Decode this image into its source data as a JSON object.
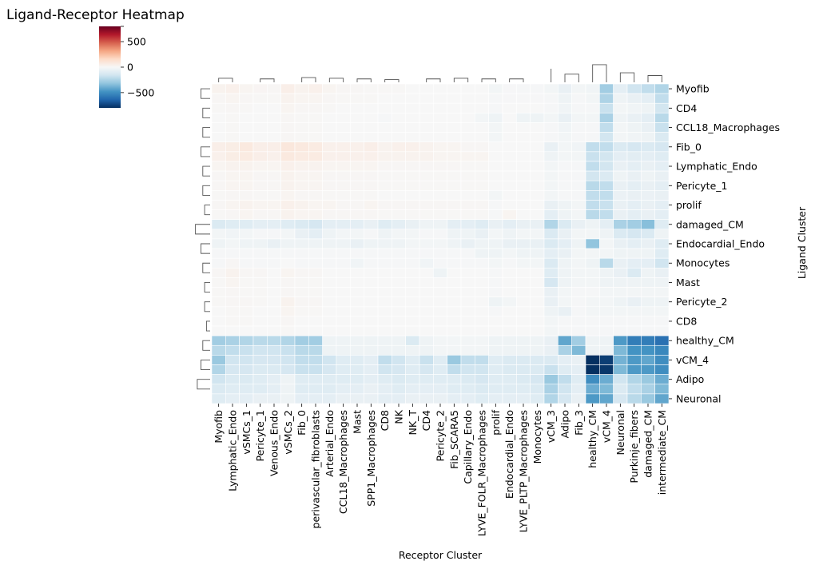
{
  "chart_data": {
    "type": "heatmap",
    "title": "Ligand-Receptor Heatmap",
    "xlabel": "Receptor Cluster",
    "ylabel": "Ligand Cluster",
    "colormap": "RdBu_r",
    "vmin": -800,
    "vmax": 800,
    "colorbar_ticks": [
      800,
      500,
      0,
      -500
    ],
    "colorbar_tick_labels": [
      "",
      "500",
      "0",
      "−500"
    ],
    "columns": [
      "Myofib",
      "Lymphatic_Endo",
      "vSMCs_1",
      "Pericyte_1",
      "Venous_Endo",
      "vSMCs_2",
      "Fib_0",
      "perivascular_fibroblasts",
      "Arterial_Endo",
      "CCL18_Macrophages",
      "Mast",
      "SPP1_Macrophages",
      "CD8",
      "NK",
      "NK_T",
      "CD4",
      "Pericyte_2",
      "Fib_SCARA5",
      "Capillary_Endo",
      "LYVE_FOLR_Macrophages",
      "prolif",
      "Endocardial_Endo",
      "LYVE_PLTP_Macrophages",
      "Monocytes",
      "vCM_3",
      "Adipo",
      "Fib_3",
      "healthy_CM",
      "vCM_4",
      "Neuronal",
      "Purkinje_fibers",
      "damaged_CM",
      "intermediate_CM"
    ],
    "rows": [
      "Myofib",
      "",
      "CD4",
      "",
      "CCL18_Macrophages",
      "",
      "Fib_0",
      "",
      "Lymphatic_Endo",
      "",
      "Pericyte_1",
      "",
      "prolif",
      "",
      "damaged_CM",
      "",
      "Endocardial_Endo",
      "",
      "Monocytes",
      "",
      "Mast",
      "",
      "Pericyte_2",
      "",
      "CD8",
      "",
      "healthy_CM",
      "",
      "vCM_4",
      "",
      "Adipo",
      "",
      "Neuronal"
    ],
    "values": [
      [
        30,
        40,
        20,
        15,
        10,
        50,
        30,
        40,
        20,
        10,
        10,
        5,
        5,
        5,
        0,
        0,
        0,
        0,
        0,
        0,
        -20,
        -5,
        -10,
        -10,
        -20,
        -60,
        -20,
        -30,
        -280,
        -80,
        -160,
        -200,
        -240
      ],
      [
        10,
        20,
        10,
        5,
        5,
        30,
        20,
        20,
        10,
        5,
        5,
        5,
        0,
        0,
        0,
        0,
        0,
        0,
        0,
        0,
        -10,
        -5,
        -5,
        -5,
        -10,
        -40,
        -10,
        -20,
        -250,
        -40,
        -60,
        -80,
        -200
      ],
      [
        5,
        10,
        5,
        0,
        0,
        20,
        10,
        10,
        5,
        0,
        0,
        0,
        0,
        0,
        0,
        0,
        0,
        0,
        0,
        0,
        -10,
        0,
        0,
        0,
        -10,
        -30,
        -10,
        -10,
        -180,
        -20,
        -30,
        -40,
        -150
      ],
      [
        0,
        5,
        0,
        0,
        0,
        10,
        5,
        5,
        0,
        0,
        0,
        0,
        -10,
        0,
        0,
        0,
        0,
        0,
        0,
        -20,
        -40,
        0,
        -40,
        -40,
        -20,
        -60,
        -20,
        -20,
        -260,
        -40,
        -60,
        -80,
        -220
      ],
      [
        0,
        5,
        0,
        0,
        0,
        10,
        5,
        5,
        0,
        0,
        0,
        0,
        0,
        0,
        0,
        0,
        0,
        0,
        0,
        0,
        -20,
        0,
        0,
        0,
        -10,
        -30,
        -10,
        -10,
        -200,
        -20,
        -40,
        -60,
        -180
      ],
      [
        0,
        5,
        0,
        0,
        0,
        10,
        5,
        5,
        0,
        0,
        0,
        0,
        0,
        0,
        0,
        0,
        0,
        0,
        0,
        0,
        -20,
        0,
        0,
        0,
        -10,
        -20,
        -10,
        -10,
        -150,
        -20,
        -30,
        -40,
        -120
      ],
      [
        50,
        60,
        80,
        50,
        50,
        90,
        80,
        70,
        40,
        40,
        40,
        50,
        30,
        40,
        40,
        30,
        20,
        20,
        10,
        10,
        0,
        0,
        0,
        0,
        -60,
        -20,
        -30,
        -200,
        -200,
        -120,
        -140,
        -120,
        -140
      ],
      [
        40,
        60,
        70,
        50,
        40,
        80,
        70,
        70,
        40,
        40,
        40,
        40,
        30,
        30,
        30,
        30,
        20,
        20,
        20,
        20,
        0,
        0,
        0,
        0,
        -40,
        -20,
        -20,
        -180,
        -150,
        -80,
        -90,
        -80,
        -100
      ],
      [
        20,
        30,
        30,
        20,
        20,
        40,
        30,
        30,
        20,
        20,
        20,
        20,
        10,
        10,
        10,
        10,
        10,
        10,
        5,
        5,
        0,
        0,
        0,
        0,
        -20,
        -10,
        -10,
        -200,
        -150,
        -60,
        -80,
        -60,
        -80
      ],
      [
        10,
        20,
        20,
        10,
        10,
        30,
        20,
        20,
        10,
        10,
        10,
        10,
        5,
        5,
        5,
        5,
        5,
        5,
        5,
        5,
        0,
        0,
        0,
        0,
        -20,
        -10,
        -10,
        -150,
        -120,
        -40,
        -60,
        -40,
        -60
      ],
      [
        10,
        20,
        20,
        10,
        10,
        30,
        20,
        20,
        10,
        10,
        10,
        10,
        5,
        5,
        5,
        5,
        5,
        5,
        5,
        5,
        0,
        0,
        0,
        0,
        -20,
        -10,
        -10,
        -220,
        -200,
        -60,
        -80,
        -60,
        -80
      ],
      [
        5,
        10,
        10,
        5,
        5,
        20,
        10,
        10,
        5,
        5,
        5,
        5,
        0,
        0,
        0,
        0,
        0,
        0,
        0,
        0,
        -20,
        0,
        0,
        0,
        -20,
        -10,
        -10,
        -200,
        -200,
        -50,
        -60,
        -50,
        -60
      ],
      [
        10,
        20,
        30,
        20,
        20,
        40,
        30,
        20,
        20,
        10,
        10,
        20,
        10,
        10,
        10,
        10,
        10,
        10,
        10,
        10,
        -10,
        0,
        0,
        0,
        -60,
        -40,
        -20,
        -200,
        -180,
        -60,
        -80,
        -60,
        -80
      ],
      [
        5,
        10,
        20,
        10,
        10,
        30,
        20,
        20,
        10,
        10,
        10,
        10,
        5,
        5,
        5,
        5,
        5,
        5,
        5,
        5,
        -10,
        20,
        0,
        0,
        -80,
        -40,
        -20,
        -220,
        -200,
        -60,
        -80,
        -60,
        -80
      ],
      [
        -120,
        -100,
        -100,
        -80,
        -80,
        -100,
        -120,
        -140,
        -80,
        -80,
        -80,
        -60,
        -100,
        -80,
        -60,
        -40,
        -40,
        -80,
        -80,
        -100,
        -60,
        -80,
        -60,
        -60,
        -240,
        -120,
        -60,
        -40,
        -80,
        -260,
        -280,
        -340,
        -100
      ],
      [
        -20,
        -30,
        -20,
        -10,
        -10,
        -20,
        -60,
        -80,
        -40,
        -20,
        -20,
        -10,
        -40,
        -20,
        -20,
        -10,
        -10,
        -40,
        -40,
        -60,
        -20,
        -40,
        -20,
        -20,
        -120,
        -60,
        -20,
        -20,
        -40,
        -120,
        -140,
        -120,
        -40
      ],
      [
        -40,
        -20,
        -40,
        -40,
        -60,
        -40,
        -40,
        -40,
        -40,
        -40,
        -60,
        -40,
        -40,
        -40,
        -20,
        -20,
        -20,
        -40,
        -60,
        -40,
        -40,
        -60,
        -60,
        -60,
        -120,
        -80,
        -40,
        -320,
        -20,
        -60,
        -80,
        -60,
        -100
      ],
      [
        -10,
        -10,
        -10,
        -10,
        -10,
        -10,
        -10,
        -10,
        -10,
        -10,
        -10,
        -10,
        -10,
        -10,
        -10,
        -10,
        -10,
        -10,
        -10,
        -40,
        -40,
        -20,
        -40,
        -40,
        -80,
        -60,
        -20,
        -20,
        -20,
        -40,
        -40,
        -40,
        -100
      ],
      [
        -10,
        10,
        -10,
        -10,
        -10,
        0,
        -10,
        -10,
        -10,
        -10,
        -30,
        -10,
        -10,
        -10,
        -10,
        -30,
        -10,
        -10,
        -10,
        -10,
        -20,
        -10,
        -20,
        -20,
        -120,
        -40,
        -20,
        -40,
        -220,
        -60,
        -80,
        -80,
        -160
      ],
      [
        10,
        30,
        10,
        10,
        0,
        20,
        10,
        10,
        0,
        0,
        0,
        0,
        0,
        0,
        0,
        0,
        -40,
        0,
        0,
        0,
        -10,
        0,
        0,
        0,
        -100,
        -40,
        -20,
        -20,
        -40,
        -60,
        -120,
        -40,
        -60
      ],
      [
        5,
        20,
        5,
        5,
        0,
        10,
        5,
        5,
        0,
        0,
        0,
        0,
        0,
        0,
        0,
        0,
        0,
        0,
        0,
        0,
        -10,
        0,
        0,
        0,
        -140,
        -40,
        -20,
        -20,
        -40,
        -40,
        -40,
        -40,
        -40
      ],
      [
        5,
        10,
        5,
        5,
        0,
        10,
        5,
        5,
        0,
        0,
        0,
        0,
        0,
        0,
        0,
        0,
        0,
        0,
        0,
        0,
        -10,
        0,
        0,
        0,
        -60,
        -20,
        -10,
        -10,
        -20,
        -20,
        -20,
        -20,
        -20
      ],
      [
        5,
        10,
        10,
        5,
        0,
        30,
        10,
        10,
        0,
        0,
        0,
        0,
        0,
        0,
        0,
        0,
        0,
        0,
        0,
        0,
        -40,
        -20,
        0,
        0,
        -60,
        -20,
        -10,
        -20,
        -20,
        -40,
        -60,
        -40,
        -40
      ],
      [
        0,
        5,
        5,
        0,
        0,
        20,
        5,
        5,
        0,
        0,
        0,
        0,
        0,
        0,
        0,
        0,
        0,
        0,
        0,
        0,
        -10,
        0,
        0,
        0,
        -40,
        -60,
        -10,
        -20,
        -20,
        -20,
        -20,
        -20,
        -20
      ],
      [
        0,
        5,
        5,
        0,
        0,
        10,
        0,
        0,
        0,
        0,
        0,
        0,
        0,
        0,
        0,
        0,
        0,
        0,
        0,
        0,
        0,
        0,
        0,
        0,
        -20,
        -10,
        -10,
        -10,
        -10,
        -10,
        -10,
        -10,
        -10
      ],
      [
        0,
        0,
        0,
        0,
        0,
        5,
        0,
        0,
        0,
        0,
        0,
        0,
        0,
        0,
        0,
        0,
        0,
        0,
        0,
        0,
        0,
        0,
        0,
        0,
        -20,
        -10,
        -10,
        -10,
        -10,
        -10,
        -10,
        -10,
        -10
      ],
      [
        -280,
        -260,
        -240,
        -220,
        -220,
        -240,
        -280,
        -280,
        -40,
        -40,
        -40,
        -40,
        -40,
        -40,
        -120,
        -40,
        -20,
        -20,
        -20,
        -20,
        -40,
        -40,
        -40,
        -40,
        -60,
        -420,
        -280,
        -40,
        -40,
        -460,
        -560,
        -560,
        -600
      ],
      [
        -220,
        -200,
        -180,
        -160,
        -160,
        -180,
        -220,
        -220,
        -40,
        -40,
        -40,
        -40,
        -40,
        -40,
        -40,
        -40,
        -20,
        -20,
        -20,
        -20,
        -40,
        -40,
        -40,
        -40,
        -60,
        -260,
        -360,
        -40,
        -40,
        -360,
        -480,
        -480,
        -520
      ],
      [
        -300,
        -160,
        -160,
        -140,
        -140,
        -160,
        -200,
        -200,
        -160,
        -100,
        -100,
        -80,
        -200,
        -160,
        -100,
        -180,
        -100,
        -300,
        -200,
        -200,
        -100,
        -120,
        -120,
        -120,
        -120,
        -80,
        -60,
        -800,
        -760,
        -380,
        -460,
        -420,
        -500
      ],
      [
        -240,
        -140,
        -140,
        -120,
        -120,
        -140,
        -180,
        -180,
        -140,
        -100,
        -100,
        -80,
        -160,
        -140,
        -100,
        -140,
        -100,
        -200,
        -160,
        -160,
        -100,
        -120,
        -120,
        -120,
        -180,
        -100,
        -80,
        -800,
        -780,
        -360,
        -460,
        -460,
        -500
      ],
      [
        -160,
        -120,
        -120,
        -100,
        -80,
        -40,
        -100,
        -100,
        -100,
        -100,
        -100,
        -80,
        -100,
        -120,
        -100,
        -100,
        -100,
        -100,
        -120,
        -140,
        -100,
        -100,
        -120,
        -140,
        -300,
        -200,
        -100,
        -500,
        -400,
        -160,
        -240,
        -300,
        -400
      ],
      [
        -120,
        -100,
        -100,
        -100,
        -80,
        -40,
        -100,
        -100,
        -100,
        -80,
        -80,
        -60,
        -80,
        -100,
        -80,
        -80,
        -80,
        -100,
        -100,
        -120,
        -100,
        -100,
        -100,
        -120,
        -260,
        -160,
        -80,
        -400,
        -360,
        -120,
        -200,
        -260,
        -360
      ],
      [
        -100,
        -80,
        -80,
        -60,
        -60,
        -40,
        -80,
        -80,
        -80,
        -60,
        -60,
        -60,
        -80,
        -80,
        -60,
        -60,
        -60,
        -80,
        -80,
        -100,
        -80,
        -80,
        -80,
        -100,
        -240,
        -140,
        -60,
        -460,
        -420,
        -140,
        -220,
        -300,
        -420
      ]
    ]
  }
}
